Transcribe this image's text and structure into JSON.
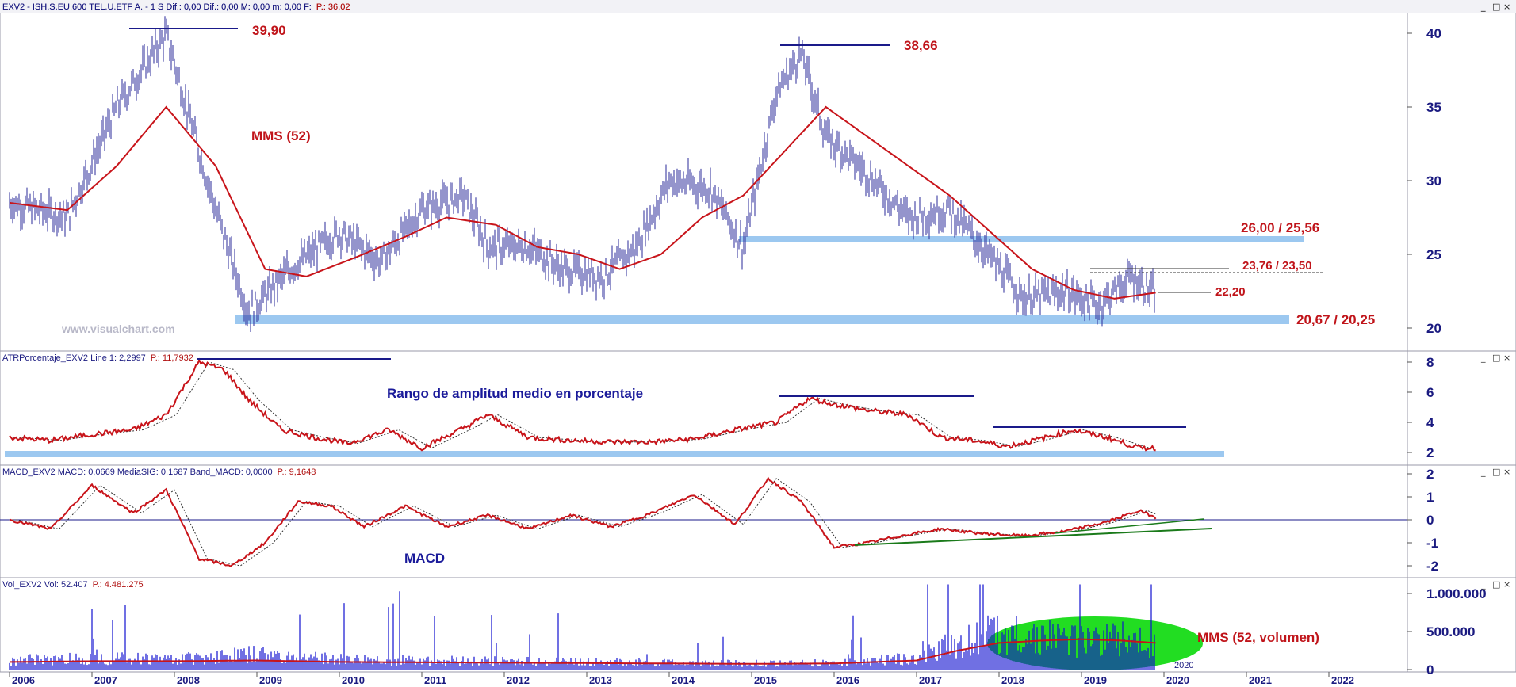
{
  "window": {
    "buttons": [
      "_",
      "□",
      "×"
    ]
  },
  "colors": {
    "price_bars": "#2a2a9a",
    "ma": "#c8141a",
    "support": "#9cc8f0",
    "trendline": "#1a1a8a",
    "green_line": "#1a7a1a",
    "volume_bars": "#1010d0",
    "volume_ellipse": "#22dd22"
  },
  "watermark": "www.visualchart.com",
  "panels": [
    {
      "id": "price",
      "header": "EXV2 - ISH.S.EU.600 TEL.U.ETF A. - 1 S  Dif.: 0,00  Dif.: 0,00  M: 0,00  m: 0,00  F:",
      "header_p": "P.: 36,02",
      "yticks": [
        "40",
        "35",
        "30",
        "25",
        "20"
      ]
    },
    {
      "id": "atr",
      "header": "ATRPorcentaje_EXV2 Line 1: 2,2997",
      "header_p": "P.: 11,7932",
      "yticks": [
        "8",
        "6",
        "4",
        "2"
      ]
    },
    {
      "id": "macd",
      "header": "MACD_EXV2 MACD: 0,0669 MediaSIG: 0,1687 Band_MACD: 0,0000",
      "header_p": "P.: 9,1648",
      "yticks": [
        "2",
        "1",
        "0",
        "-1",
        "-2"
      ]
    },
    {
      "id": "vol",
      "header": "Vol_EXV2 Vol: 52.407",
      "header_p": "P.: 4.481.275",
      "yticks": [
        "1.000.000",
        "500.000",
        "0"
      ]
    }
  ],
  "annotations": {
    "high1": "39,90",
    "high2": "38,66",
    "mms": "MMS (52)",
    "res1": "26,00 / 25,56",
    "res2": "23,76 / 23,50",
    "pivot": "22,20",
    "support": "20,67 / 20,25",
    "atr_label": "Rango de amplitud medio en porcentaje",
    "macd_label": "MACD",
    "vol_label": "MMS (52, volumen)",
    "vol_year": "2020"
  },
  "chart_data": [
    {
      "type": "candlestick",
      "title": "EXV2 - ISH.S.EU.600 TEL.U.ETF A. - 1 S",
      "x": [
        "2006",
        "2006.7",
        "2007.3",
        "2007.9",
        "2008.5",
        "2008.9",
        "2009.4",
        "2010.0",
        "2010.5",
        "2011.0",
        "2011.5",
        "2011.8",
        "2012.3",
        "2012.7",
        "2013.2",
        "2013.6",
        "2014.0",
        "2014.5",
        "2014.9",
        "2015.3",
        "2015.6",
        "2015.9",
        "2016.4",
        "2016.9",
        "2017.4",
        "2017.8",
        "2018.3",
        "2018.8",
        "2019.2",
        "2019.6",
        "2019.9"
      ],
      "close": [
        28.5,
        27.5,
        35.0,
        39.9,
        28.0,
        21.0,
        24.0,
        26.5,
        24.5,
        28.0,
        29.0,
        25.5,
        25.5,
        24.0,
        23.5,
        25.5,
        30.0,
        29.5,
        25.5,
        36.0,
        38.66,
        33.0,
        30.5,
        27.5,
        28.0,
        25.5,
        22.0,
        22.5,
        21.5,
        23.5,
        22.2
      ],
      "ma52_x": [
        "2006",
        "2006.7",
        "2007.3",
        "2007.9",
        "2008.5",
        "2009.1",
        "2009.6",
        "2010.2",
        "2010.8",
        "2011.3",
        "2011.9",
        "2012.4",
        "2012.9",
        "2013.4",
        "2013.9",
        "2014.4",
        "2014.9",
        "2015.4",
        "2015.9",
        "2016.4",
        "2016.9",
        "2017.4",
        "2017.9",
        "2018.4",
        "2018.9",
        "2019.4",
        "2019.9"
      ],
      "ma52": [
        28.5,
        28.0,
        31.0,
        35.0,
        31.0,
        24.0,
        23.5,
        24.8,
        26.2,
        27.5,
        27.0,
        25.5,
        25.0,
        24.0,
        25.0,
        27.5,
        29.0,
        32.0,
        35.0,
        33.0,
        31.0,
        29.0,
        26.5,
        24.0,
        22.6,
        22.0,
        22.4
      ],
      "levels": [
        39.9,
        38.66,
        26.0,
        25.56,
        23.76,
        23.5,
        22.2,
        20.67,
        20.25
      ],
      "ylim": [
        19.5,
        41
      ],
      "xlim": [
        "2006",
        "2022.9"
      ]
    },
    {
      "type": "line",
      "title": "ATRPorcentaje_EXV2",
      "x": [
        "2006",
        "2006.5",
        "2007.0",
        "2007.5",
        "2007.9",
        "2008.3",
        "2008.6",
        "2008.9",
        "2009.3",
        "2009.7",
        "2010.1",
        "2010.6",
        "2011.0",
        "2011.5",
        "2011.8",
        "2012.3",
        "2012.8",
        "2013.3",
        "2013.8",
        "2014.3",
        "2014.8",
        "2015.3",
        "2015.7",
        "2016.0",
        "2016.4",
        "2016.9",
        "2017.3",
        "2017.7",
        "2018.1",
        "2018.5",
        "2018.9",
        "2019.3",
        "2019.7",
        "2019.9"
      ],
      "values": [
        3.0,
        2.8,
        3.2,
        3.5,
        4.5,
        8.0,
        7.5,
        5.5,
        3.5,
        3.0,
        2.6,
        3.5,
        2.3,
        3.6,
        4.5,
        3.0,
        2.8,
        2.7,
        2.7,
        2.9,
        3.5,
        4.0,
        5.6,
        5.2,
        4.8,
        4.5,
        3.0,
        2.8,
        2.4,
        2.9,
        3.5,
        3.0,
        2.3,
        2.3
      ],
      "ylim": [
        1.5,
        8.5
      ]
    },
    {
      "type": "line",
      "title": "MACD_EXV2",
      "x": [
        "2006",
        "2006.5",
        "2007.0",
        "2007.5",
        "2007.9",
        "2008.3",
        "2008.7",
        "2009.1",
        "2009.5",
        "2009.9",
        "2010.3",
        "2010.8",
        "2011.3",
        "2011.8",
        "2012.3",
        "2012.8",
        "2013.3",
        "2013.8",
        "2014.3",
        "2014.8",
        "2015.2",
        "2015.6",
        "2016.0",
        "2016.4",
        "2016.8",
        "2017.3",
        "2017.8",
        "2018.3",
        "2018.8",
        "2019.3",
        "2019.7",
        "2019.9"
      ],
      "values": [
        0.0,
        -0.4,
        1.5,
        0.3,
        1.3,
        -1.7,
        -2.0,
        -1.0,
        0.8,
        0.6,
        -0.3,
        0.6,
        -0.3,
        0.2,
        -0.4,
        0.2,
        -0.3,
        0.3,
        1.1,
        -0.2,
        1.8,
        0.8,
        -1.2,
        -1.0,
        -0.7,
        -0.4,
        -0.6,
        -0.7,
        -0.5,
        -0.1,
        0.4,
        0.1
      ],
      "ylim": [
        -2.4,
        2.3
      ]
    },
    {
      "type": "bar",
      "title": "Vol_EXV2",
      "x": [
        "2006",
        "2007",
        "2008",
        "2009",
        "2010",
        "2011",
        "2012",
        "2013",
        "2014",
        "2015",
        "2016",
        "2017",
        "2017.5",
        "2018",
        "2018.5",
        "2019",
        "2019.5",
        "2019.9"
      ],
      "values": [
        120000,
        150000,
        140000,
        200000,
        130000,
        120000,
        110000,
        100000,
        90000,
        80000,
        90000,
        150000,
        350000,
        480000,
        420000,
        380000,
        400000,
        300000
      ],
      "ma52": [
        100000,
        110000,
        110000,
        120000,
        100000,
        95000,
        90000,
        85000,
        80000,
        75000,
        80000,
        120000,
        250000,
        350000,
        380000,
        400000,
        380000,
        350000
      ],
      "ylim": [
        0,
        1150000
      ]
    }
  ],
  "x_axis": {
    "ticks": [
      "2006",
      "2007",
      "2008",
      "2009",
      "2010",
      "2011",
      "2012",
      "2013",
      "2014",
      "2015",
      "2016",
      "2017",
      "2018",
      "2019",
      "2020",
      "2021",
      "2022"
    ]
  }
}
